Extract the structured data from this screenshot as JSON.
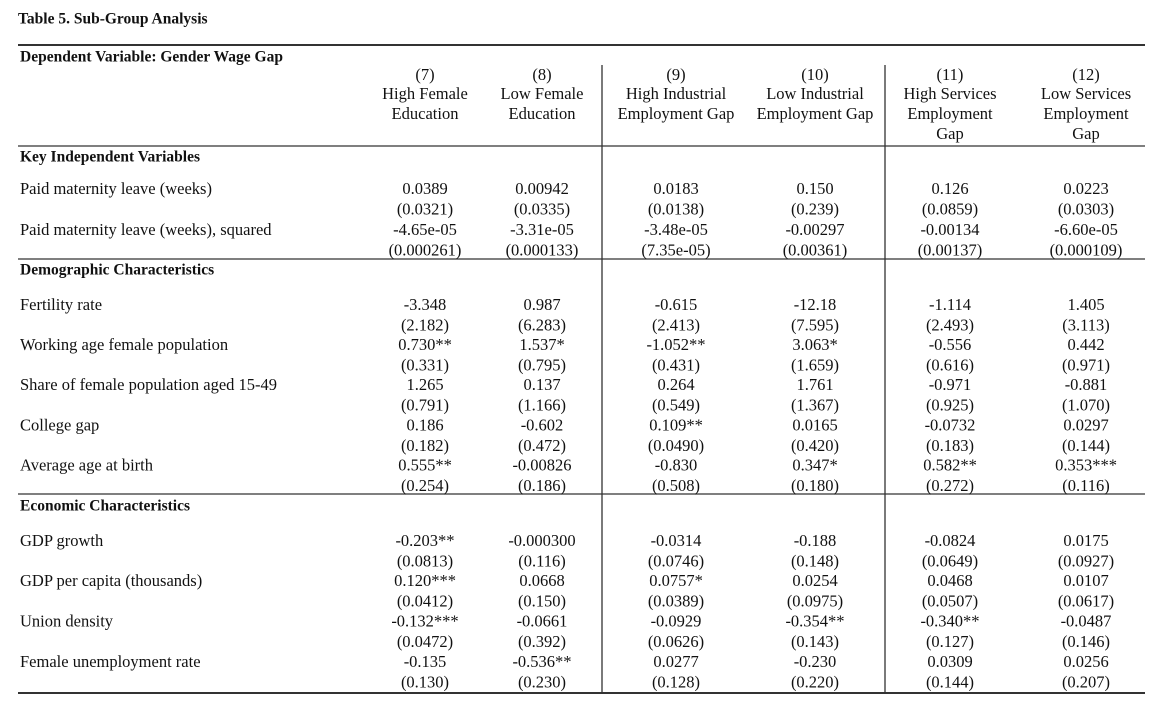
{
  "title": "Table 5. Sub-Group Analysis",
  "dependent": "Dependent Variable: Gender Wage Gap",
  "columns": [
    {
      "number": "(7)",
      "label": [
        "High Female",
        "Education"
      ]
    },
    {
      "number": "(8)",
      "label": [
        "Low Female",
        "Education"
      ]
    },
    {
      "number": "(9)",
      "label": [
        "High Industrial",
        "Employment Gap"
      ]
    },
    {
      "number": "(10)",
      "label": [
        "Low Industrial",
        "Employment Gap"
      ]
    },
    {
      "number": "(11)",
      "label": [
        "High Services",
        "Employment",
        "Gap"
      ]
    },
    {
      "number": "(12)",
      "label": [
        "Low Services",
        "Employment",
        "Gap"
      ]
    }
  ],
  "sections": [
    {
      "title": "Key Independent Variables",
      "rows": [
        {
          "label": "Paid maternity leave (weeks)",
          "values": [
            "0.0389",
            "0.00942",
            "0.0183",
            "0.150",
            "0.126",
            "0.0223"
          ],
          "errors": [
            "(0.0321)",
            "(0.0335)",
            "(0.0138)",
            "(0.239)",
            "(0.0859)",
            "(0.0303)"
          ]
        },
        {
          "label": "Paid maternity leave (weeks), squared",
          "values": [
            "-4.65e-05",
            "-3.31e-05",
            "-3.48e-05",
            "-0.00297",
            "-0.00134",
            "-6.60e-05"
          ],
          "errors": [
            "(0.000261)",
            "(0.000133)",
            "(7.35e-05)",
            "(0.00361)",
            "(0.00137)",
            "(0.000109)"
          ]
        }
      ]
    },
    {
      "title": "Demographic Characteristics",
      "rows": [
        {
          "label": "Fertility rate",
          "values": [
            "-3.348",
            "0.987",
            "-0.615",
            "-12.18",
            "-1.114",
            "1.405"
          ],
          "errors": [
            "(2.182)",
            "(6.283)",
            "(2.413)",
            "(7.595)",
            "(2.493)",
            "(3.113)"
          ]
        },
        {
          "label": "Working age female population",
          "values": [
            "0.730**",
            "1.537*",
            "-1.052**",
            "3.063*",
            "-0.556",
            "0.442"
          ],
          "errors": [
            "(0.331)",
            "(0.795)",
            "(0.431)",
            "(1.659)",
            "(0.616)",
            "(0.971)"
          ]
        },
        {
          "label": "Share of female population aged 15-49",
          "values": [
            "1.265",
            "0.137",
            "0.264",
            "1.761",
            "-0.971",
            "-0.881"
          ],
          "errors": [
            "(0.791)",
            "(1.166)",
            "(0.549)",
            "(1.367)",
            "(0.925)",
            "(1.070)"
          ]
        },
        {
          "label": "College gap",
          "values": [
            "0.186",
            "-0.602",
            "0.109**",
            "0.0165",
            "-0.0732",
            "0.0297"
          ],
          "errors": [
            "(0.182)",
            "(0.472)",
            "(0.0490)",
            "(0.420)",
            "(0.183)",
            "(0.144)"
          ]
        },
        {
          "label": "Average age at birth",
          "values": [
            "0.555**",
            "-0.00826",
            "-0.830",
            "0.347*",
            "0.582**",
            "0.353***"
          ],
          "errors": [
            "(0.254)",
            "(0.186)",
            "(0.508)",
            "(0.180)",
            "(0.272)",
            "(0.116)"
          ]
        }
      ]
    },
    {
      "title": "Economic Characteristics",
      "rows": [
        {
          "label": "GDP growth",
          "values": [
            "-0.203**",
            "-0.000300",
            "-0.0314",
            "-0.188",
            "-0.0824",
            "0.0175"
          ],
          "errors": [
            "(0.0813)",
            "(0.116)",
            "(0.0746)",
            "(0.148)",
            "(0.0649)",
            "(0.0927)"
          ]
        },
        {
          "label": "GDP per capita (thousands)",
          "values": [
            "0.120***",
            "0.0668",
            "0.0757*",
            "0.0254",
            "0.0468",
            "0.0107"
          ],
          "errors": [
            "(0.0412)",
            "(0.150)",
            "(0.0389)",
            "(0.0975)",
            "(0.0507)",
            "(0.0617)"
          ]
        },
        {
          "label": "Union density",
          "values": [
            "-0.132***",
            "-0.0661",
            "-0.0929",
            "-0.354**",
            "-0.340**",
            "-0.0487"
          ],
          "errors": [
            "(0.0472)",
            "(0.392)",
            "(0.0626)",
            "(0.143)",
            "(0.127)",
            "(0.146)"
          ]
        },
        {
          "label": "Female unemployment rate",
          "values": [
            "-0.135",
            "-0.536**",
            "0.0277",
            "-0.230",
            "0.0309",
            "0.0256"
          ],
          "errors": [
            "(0.130)",
            "(0.230)",
            "(0.128)",
            "(0.220)",
            "(0.144)",
            "(0.207)"
          ]
        }
      ]
    }
  ]
}
